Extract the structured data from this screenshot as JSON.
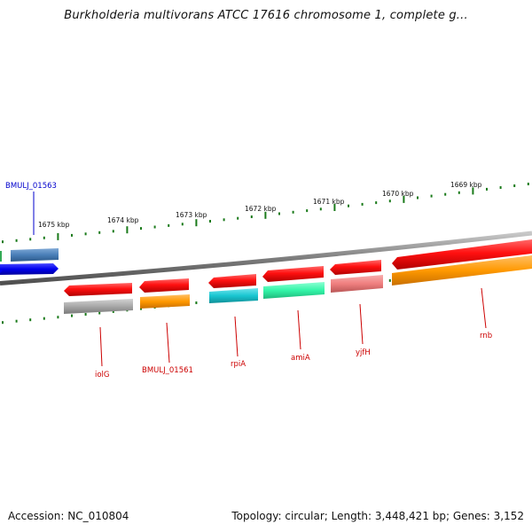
{
  "title": "Burkholderia multivorans ATCC 17616 chromosome 1, complete g...",
  "footer": {
    "accession": "Accession: NC_010804",
    "topology": "Topology: circular; Length: 3,448,421 bp; Genes: 3,152"
  },
  "ticks": [
    {
      "label": "1675 kbp"
    },
    {
      "label": "1674 kbp"
    },
    {
      "label": "1673 kbp"
    },
    {
      "label": "1672 kbp"
    },
    {
      "label": "1671 kbp"
    },
    {
      "label": "1670 kbp"
    },
    {
      "label": "1669 kbp"
    }
  ],
  "genes": [
    {
      "label": "BMULJ_01563",
      "color": "#0000cc"
    },
    {
      "label": "iolG",
      "color": "#cc0000"
    },
    {
      "label": "BMULJ_01561",
      "color": "#cc0000"
    },
    {
      "label": "rpiA",
      "color": "#cc0000"
    },
    {
      "label": "amiA",
      "color": "#cc0000"
    },
    {
      "label": "yjfH",
      "color": "#cc0000"
    },
    {
      "label": "rnb",
      "color": "#cc0000"
    }
  ],
  "colors": {
    "cds_forward": "#ff1a1a",
    "cds_reverse": "#0000ee",
    "backbone": "#8c8c8c",
    "tick": "#1a7a1a",
    "cog_steelblue": "#4a7fb8",
    "cog_gray": "#aaaaaa",
    "cog_orange": "#ff9900",
    "cog_cyan": "#19c6d1",
    "cog_mint": "#33f5a8",
    "cog_salmon": "#f07f7f"
  }
}
